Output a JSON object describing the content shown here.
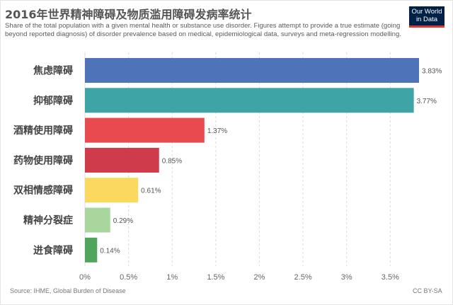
{
  "header": {
    "title": "2016年世界精神障碍及物质滥用障碍发病率统计",
    "subtitle": "Share of the total population with a given mental health or substance use disorder. Figures attempt to provide a true estimate (going beyond reported diagnosis) of disorder prevalence based on medical, epidemiological data, surveys and meta-regression modelling."
  },
  "logo": {
    "line1": "Our World",
    "line2": "in Data",
    "bg": "#002147",
    "accent": "#d73a33"
  },
  "footer": {
    "source": "Source: IHME, Global Burden of Disease",
    "license": "CC BY-SA"
  },
  "chart_data": {
    "type": "bar",
    "orientation": "horizontal",
    "categories": [
      "焦虑障碍",
      "抑郁障碍",
      "酒精使用障碍",
      "药物使用障碍",
      "双相情感障碍",
      "精神分裂症",
      "进食障碍"
    ],
    "values": [
      3.83,
      3.77,
      1.37,
      0.85,
      0.61,
      0.29,
      0.14
    ],
    "value_labels": [
      "3.83%",
      "3.77%",
      "1.37%",
      "0.85%",
      "0.61%",
      "0.29%",
      "0.14%"
    ],
    "colors": [
      "#4e73b8",
      "#3ea4a6",
      "#e84a4f",
      "#cf3b4a",
      "#fbd85e",
      "#a9d69c",
      "#4fa55b"
    ],
    "xticks": [
      0,
      0.5,
      1,
      1.5,
      2,
      2.5,
      3,
      3.5
    ],
    "xtick_labels": [
      "0%",
      "0.5%",
      "1%",
      "1.5%",
      "2%",
      "2.5%",
      "3%",
      "3.5%"
    ],
    "xlim": [
      0,
      3.83
    ],
    "grid": true
  }
}
